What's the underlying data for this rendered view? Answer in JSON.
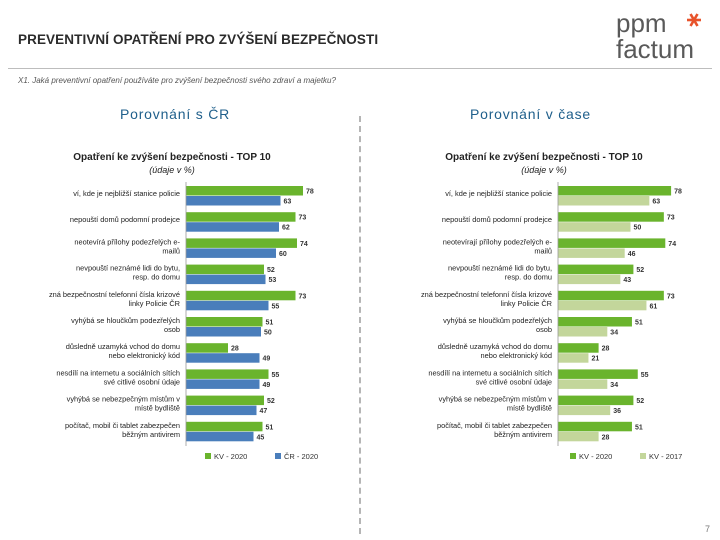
{
  "header": {
    "title": "PREVENTIVNÍ OPATŘENÍ PRO ZVÝŠENÍ BEZPEČNOSTI",
    "logo_line1": "ppm",
    "logo_line2": "factum"
  },
  "question": "X1. Jaká preventivní opatření používáte pro zvýšení bezpečnosti svého zdraví a majetku?",
  "left_subtitle": "Porovnání s ČR",
  "right_subtitle": "Porovnání v čase",
  "page_number": "7",
  "colors": {
    "green": "#6ab42d",
    "blue": "#4a7ebb",
    "light_green": "#c3d69b",
    "accent": "#1f5f8b"
  },
  "chart_data": [
    {
      "type": "bar",
      "orientation": "horizontal",
      "title": "Opatření ke zvýšení bezpečnosti - TOP 10",
      "subtitle": "(údaje v %)",
      "categories": [
        [
          "ví, kde je nejbližší stanice policie"
        ],
        [
          "nepouští domů podomní prodejce"
        ],
        [
          "neotevírá přílohy podezřelých e-",
          "mailů"
        ],
        [
          "nevpouští neznámé lidi do bytu,",
          "resp. do domu"
        ],
        [
          "zná bezpečnostní telefonní čísla krizové",
          "linky Policie ČR"
        ],
        [
          "vyhýbá se hloučkům podezřelých",
          "osob"
        ],
        [
          "důsledně uzamyká vchod do domu",
          "nebo elektronický kód"
        ],
        [
          "nesdílí na internetu a sociálních sítích",
          "své citlivé osobní údaje"
        ],
        [
          "vyhýbá se nebezpečným místům v",
          "místě bydliště"
        ],
        [
          "počítač, mobil či tablet zabezpečen",
          "běžným antivirem"
        ]
      ],
      "series": [
        {
          "name": "KV - 2020",
          "color": "#6ab42d",
          "values": [
            78,
            73,
            74,
            52,
            73,
            51,
            28,
            55,
            52,
            51
          ]
        },
        {
          "name": "ČR - 2020",
          "color": "#4a7ebb",
          "values": [
            63,
            62,
            60,
            53,
            55,
            50,
            49,
            49,
            47,
            45
          ]
        }
      ],
      "xlim": [
        0,
        100
      ]
    },
    {
      "type": "bar",
      "orientation": "horizontal",
      "title": "Opatření ke zvýšení bezpečnosti - TOP 10",
      "subtitle": "(údaje v %)",
      "categories": [
        [
          "ví, kde je nejbližší stanice policie"
        ],
        [
          "nepouští domů podomní prodejce"
        ],
        [
          "neotevírají přílohy podezřelých e-",
          "mailů"
        ],
        [
          "nevpouští neznámé lidi do bytu,",
          "resp. do domu"
        ],
        [
          "zná bezpečnostní telefonní čísla krizové",
          "linky Policie ČR"
        ],
        [
          "vyhýbá se hloučkům podezřelých",
          "osob"
        ],
        [
          "důsledně uzamyká vchod do domu",
          "nebo elektronický kód"
        ],
        [
          "nesdílí na internetu a sociálních sítích",
          "své citlivé osobní údaje"
        ],
        [
          "vyhýbá se nebezpečným místům v",
          "místě bydliště"
        ],
        [
          "počítač, mobil či tablet zabezpečen",
          "běžným antivirem"
        ]
      ],
      "series": [
        {
          "name": "KV - 2020",
          "color": "#6ab42d",
          "values": [
            78,
            73,
            74,
            52,
            73,
            51,
            28,
            55,
            52,
            51
          ]
        },
        {
          "name": "KV - 2017",
          "color": "#c3d69b",
          "values": [
            63,
            50,
            46,
            43,
            61,
            34,
            21,
            34,
            36,
            28
          ]
        }
      ],
      "xlim": [
        0,
        100
      ]
    }
  ]
}
